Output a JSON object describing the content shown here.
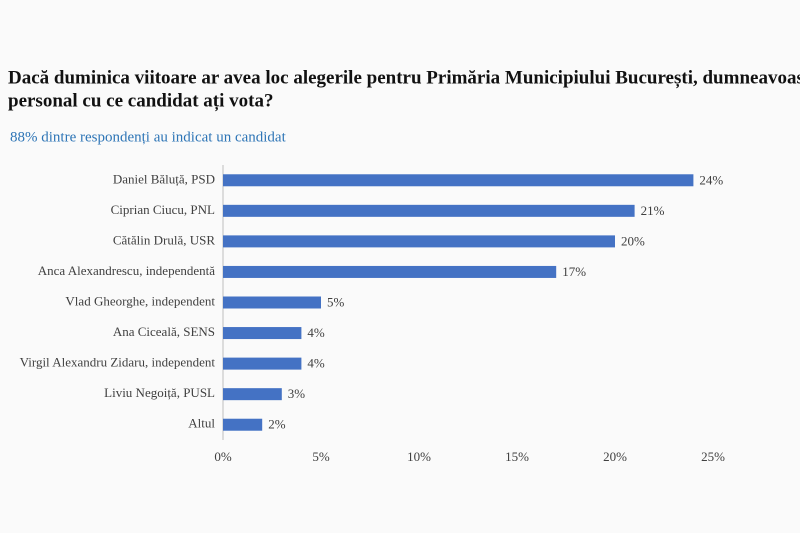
{
  "chart_data": {
    "type": "bar",
    "orientation": "horizontal",
    "title_lines": [
      "Dacă duminica viitoare ar avea loc alegerile pentru Primăria Municipiului București, dumneavoastră",
      "personal cu ce candidat ați vota?"
    ],
    "subtitle": "88% dintre respondenți au indicat un candidat",
    "categories": [
      "Daniel Băluță, PSD",
      "Ciprian Ciucu, PNL",
      "Cătălin Drulă, USR",
      "Anca Alexandrescu, independentă",
      "Vlad Gheorghe, independent",
      "Ana Ciceală, SENS",
      "Virgil Alexandru Zidaru, independent",
      "Liviu Negoiță, PUSL",
      "Altul"
    ],
    "values": [
      24,
      21,
      20,
      17,
      5,
      4,
      4,
      3,
      2
    ],
    "value_labels": [
      "24%",
      "21%",
      "20%",
      "17%",
      "5%",
      "4%",
      "4%",
      "3%",
      "2%"
    ],
    "color": "#4472c4",
    "xlim": [
      0,
      25
    ],
    "xticks": [
      {
        "value": 0,
        "label": "0%"
      },
      {
        "value": 5,
        "label": "5%"
      },
      {
        "value": 10,
        "label": "10%"
      },
      {
        "value": 15,
        "label": "15%"
      },
      {
        "value": 20,
        "label": "20%"
      },
      {
        "value": 25,
        "label": "25%"
      }
    ],
    "grid": false
  }
}
